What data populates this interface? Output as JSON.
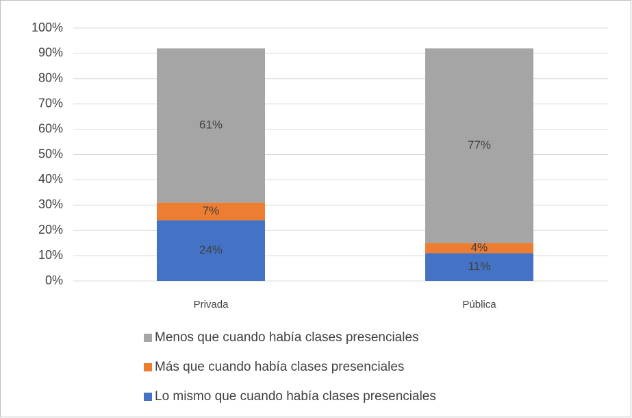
{
  "chart_data": {
    "type": "stacked_bar",
    "categories": [
      "Privada",
      "Pública"
    ],
    "series": [
      {
        "name": "Lo mismo que cuando había clases presenciales",
        "color": "#4472c4",
        "values": [
          24,
          11
        ],
        "value_labels": [
          "24%",
          "11%"
        ]
      },
      {
        "name": "Más que cuando había clases presenciales",
        "color": "#ed7d31",
        "values": [
          7,
          4
        ],
        "value_labels": [
          "7%",
          "4%"
        ]
      },
      {
        "name": "Menos que cuando había clases presenciales",
        "color": "#a5a5a5",
        "values": [
          61,
          77
        ],
        "value_labels": [
          "61%",
          "77%"
        ]
      }
    ],
    "ylim": [
      0,
      100
    ],
    "yticks": [
      {
        "value": 0,
        "label": "0%"
      },
      {
        "value": 10,
        "label": "10%"
      },
      {
        "value": 20,
        "label": "20%"
      },
      {
        "value": 30,
        "label": "30%"
      },
      {
        "value": 40,
        "label": "40%"
      },
      {
        "value": 50,
        "label": "50%"
      },
      {
        "value": 60,
        "label": "60%"
      },
      {
        "value": 70,
        "label": "70%"
      },
      {
        "value": 80,
        "label": "80%"
      },
      {
        "value": 90,
        "label": "90%"
      },
      {
        "value": 100,
        "label": "100%"
      }
    ],
    "grid": true,
    "legend": "bottom"
  }
}
